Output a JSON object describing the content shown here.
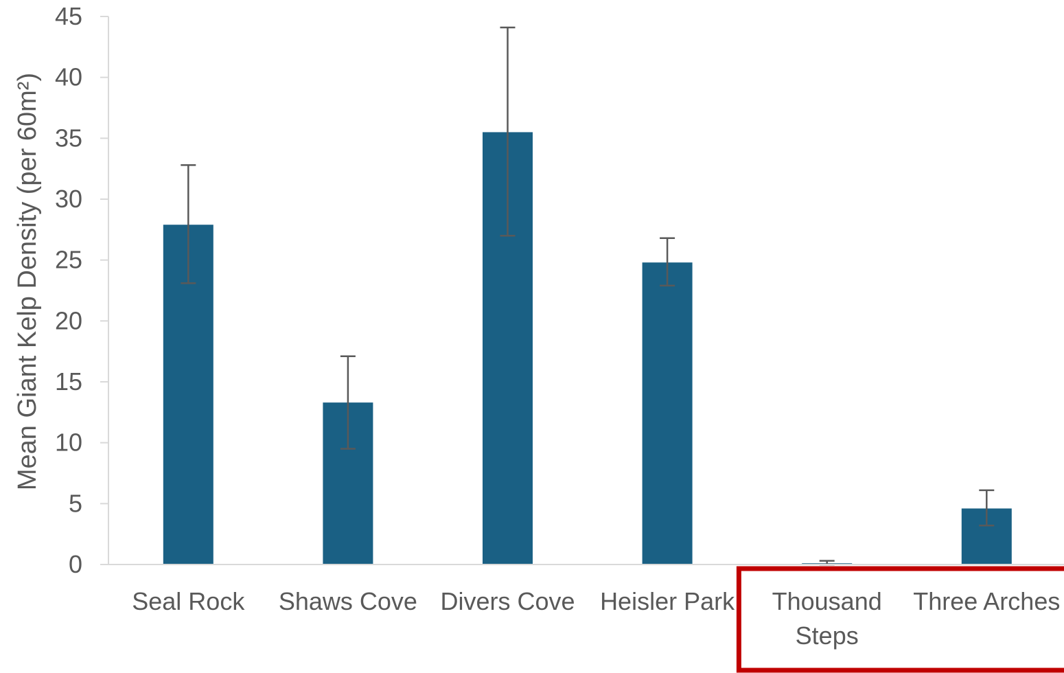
{
  "chart_data": {
    "type": "bar",
    "title": "",
    "xlabel": "",
    "ylabel": "Mean Giant Kelp Density (per 60m²)",
    "ylim": [
      0,
      45
    ],
    "yticks": [
      0,
      5,
      10,
      15,
      20,
      25,
      30,
      35,
      40,
      45
    ],
    "grid": false,
    "legend": "none",
    "categories": [
      [
        "Seal Rock"
      ],
      [
        "Shaws Cove"
      ],
      [
        "Divers Cove"
      ],
      [
        "Heisler Park"
      ],
      [
        "Thousand",
        "Steps"
      ],
      [
        "Three Arches"
      ]
    ],
    "series": [
      {
        "values": [
          27.9,
          13.3,
          35.5,
          24.8,
          0.1,
          4.6
        ],
        "error_low": [
          23.1,
          9.5,
          27.0,
          22.9,
          0.0,
          3.2
        ],
        "error_high": [
          32.8,
          17.1,
          44.1,
          26.8,
          0.3,
          6.1
        ]
      }
    ],
    "highlight": {
      "categories": [
        "Thousand Steps",
        "Three Arches"
      ],
      "color": "#C00000"
    },
    "colors": {
      "bar": "#1A6084",
      "error_bar": "#595959",
      "axis": "#D9D9D9",
      "text": "#595959"
    }
  }
}
